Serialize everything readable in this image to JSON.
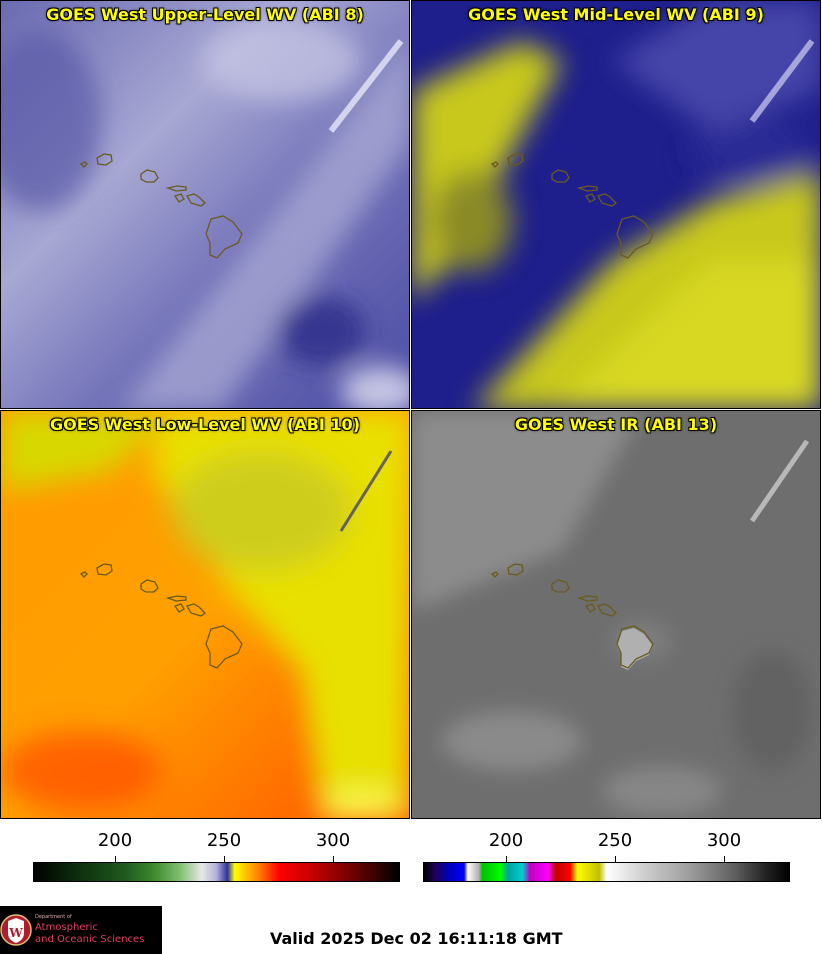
{
  "panels": [
    {
      "id": "p1",
      "title": "GOES West Upper-Level WV (ABI 8)"
    },
    {
      "id": "p2",
      "title": "GOES West Mid-Level WV (ABI 9)"
    },
    {
      "id": "p3",
      "title": "GOES West Low-Level WV (ABI 10)"
    },
    {
      "id": "p4",
      "title": "GOES West IR (ABI 13)"
    }
  ],
  "colorbars": {
    "left": {
      "tick_labels": [
        "200",
        "250",
        "300"
      ]
    },
    "right": {
      "tick_labels": [
        "200",
        "250",
        "300"
      ]
    }
  },
  "logo": {
    "line1": "Department of",
    "line2": "Atmospheric",
    "line3": "and Oceanic Sciences",
    "shield_letter": "W"
  },
  "valid_time": "Valid 2025 Dec 02 16:11:18 GMT"
}
